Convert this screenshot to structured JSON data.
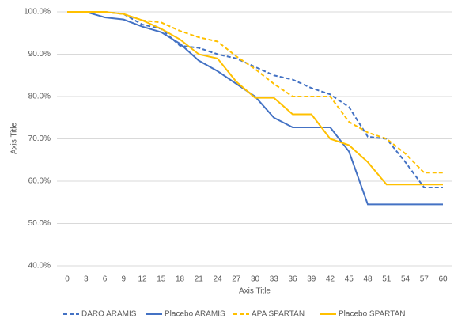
{
  "chart_data": {
    "type": "line",
    "x_label": "Axis Title",
    "y_label": "Axis Title",
    "x": [
      0,
      3,
      6,
      9,
      12,
      15,
      18,
      21,
      24,
      27,
      30,
      33,
      36,
      39,
      42,
      45,
      48,
      51,
      54,
      57,
      60
    ],
    "xlim": [
      0,
      60
    ],
    "ylim": [
      40,
      100
    ],
    "yticks": [
      {
        "value": 40,
        "label": "40.0%"
      },
      {
        "value": 50,
        "label": "50.0%"
      },
      {
        "value": 60,
        "label": "60.0%"
      },
      {
        "value": 70,
        "label": "70.0%"
      },
      {
        "value": 80,
        "label": "80.0%"
      },
      {
        "value": 90,
        "label": "90.0%"
      },
      {
        "value": 100,
        "label": "100.0%"
      }
    ],
    "grid": true,
    "legend": "bottom",
    "series": [
      {
        "name": "DARO ARAMIS",
        "color": "#4472c4",
        "line_style": "dashed",
        "values": [
          100,
          100,
          100,
          99.5,
          97,
          96,
          92,
          91.5,
          90,
          89,
          87,
          85,
          84,
          82,
          80.5,
          77.5,
          70.5,
          70,
          64.5,
          58.5,
          58.5
        ]
      },
      {
        "name": "Placebo ARAMIS",
        "color": "#4472c4",
        "line_style": "solid",
        "values": [
          100,
          100,
          98.7,
          98.2,
          96.5,
          95.2,
          92.5,
          88.5,
          86,
          83,
          80,
          75,
          72.7,
          72.7,
          72.7,
          67,
          54.5,
          54.5,
          54.5,
          54.5,
          54.5
        ]
      },
      {
        "name": "APA SPARTAN",
        "color": "#ffc000",
        "line_style": "dashed",
        "values": [
          100,
          100,
          100,
          99.5,
          98,
          97.5,
          95.5,
          94,
          93,
          89.5,
          86.5,
          83,
          80,
          80,
          80,
          74,
          71.5,
          70,
          66.5,
          62,
          62
        ]
      },
      {
        "name": "Placebo SPARTAN",
        "color": "#ffc000",
        "line_style": "solid",
        "values": [
          100,
          100,
          100,
          99.5,
          98,
          96,
          93.5,
          90,
          89,
          83.5,
          79.7,
          79.7,
          75.8,
          75.8,
          70,
          68.5,
          64.5,
          59.2,
          59.2,
          59.2,
          59.2
        ]
      }
    ]
  }
}
